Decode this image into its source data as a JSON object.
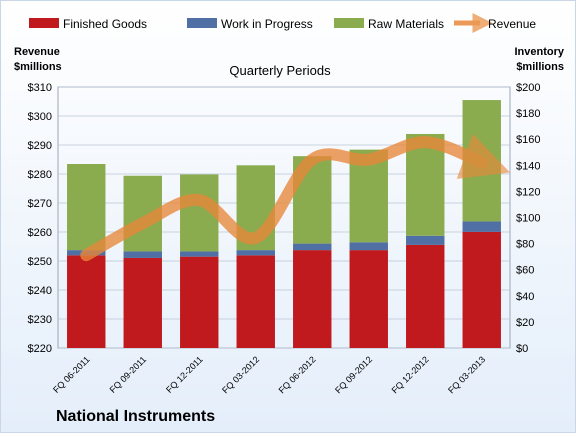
{
  "chart_data": {
    "type": "bar",
    "subtitle": "Quarterly Periods",
    "company": "National Instruments",
    "left_axis": {
      "label_line1": "Revenue",
      "label_line2": "$millions",
      "range": [
        220,
        310
      ],
      "step": 10,
      "prefix": "$"
    },
    "right_axis": {
      "label_line1": "Inventory",
      "label_line2": "$millions",
      "range": [
        0,
        200
      ],
      "step": 20,
      "prefix": "$"
    },
    "categories": [
      "FQ 06-2011",
      "FQ 09-2011",
      "FQ 12-2011",
      "FQ 03-2012",
      "FQ 06-2012",
      "FQ 09-2012",
      "FQ 12-2012",
      "FQ 03-2013"
    ],
    "series": [
      {
        "name": "Finished Goods",
        "color": "#c0191e",
        "axis": "right",
        "stacked": true,
        "values": [
          71,
          69,
          70,
          71,
          75,
          75,
          79,
          89
        ]
      },
      {
        "name": "Work in Progress",
        "color": "#4f6fa5",
        "axis": "right",
        "stacked": true,
        "values": [
          4,
          5,
          4,
          4,
          5,
          6,
          7,
          8
        ]
      },
      {
        "name": "Raw Materials",
        "color": "#8aab4e",
        "axis": "right",
        "stacked": true,
        "values": [
          66,
          58,
          59,
          65,
          67,
          71,
          78,
          93
        ]
      },
      {
        "name": "Revenue",
        "color": "#e8883a",
        "axis": "left",
        "type": "line",
        "values": [
          252,
          263,
          271,
          258,
          285,
          285,
          291,
          284
        ]
      }
    ],
    "legend_position": "top",
    "grid": true
  }
}
